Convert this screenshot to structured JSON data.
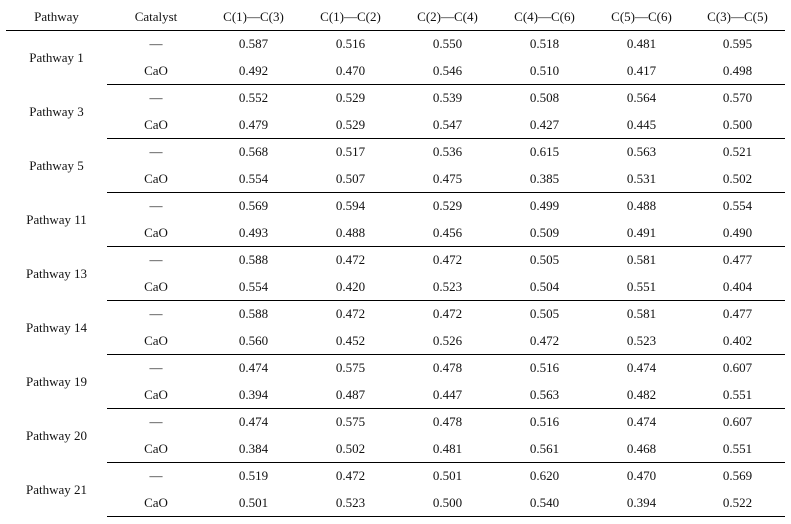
{
  "headers": [
    "Pathway",
    "Catalyst",
    "C(1)—C(3)",
    "C(1)—C(2)",
    "C(2)—C(4)",
    "C(4)—C(6)",
    "C(5)—C(6)",
    "C(3)—C(5)"
  ],
  "groups": [
    {
      "pathway": "Pathway 1",
      "rows": [
        {
          "catalyst": "—",
          "values": [
            "0.587",
            "0.516",
            "0.550",
            "0.518",
            "0.481",
            "0.595"
          ]
        },
        {
          "catalyst": "CaO",
          "values": [
            "0.492",
            "0.470",
            "0.546",
            "0.510",
            "0.417",
            "0.498"
          ]
        }
      ]
    },
    {
      "pathway": "Pathway 3",
      "rows": [
        {
          "catalyst": "—",
          "values": [
            "0.552",
            "0.529",
            "0.539",
            "0.508",
            "0.564",
            "0.570"
          ]
        },
        {
          "catalyst": "CaO",
          "values": [
            "0.479",
            "0.529",
            "0.547",
            "0.427",
            "0.445",
            "0.500"
          ]
        }
      ]
    },
    {
      "pathway": "Pathway 5",
      "rows": [
        {
          "catalyst": "—",
          "values": [
            "0.568",
            "0.517",
            "0.536",
            "0.615",
            "0.563",
            "0.521"
          ]
        },
        {
          "catalyst": "CaO",
          "values": [
            "0.554",
            "0.507",
            "0.475",
            "0.385",
            "0.531",
            "0.502"
          ]
        }
      ]
    },
    {
      "pathway": "Pathway 11",
      "rows": [
        {
          "catalyst": "—",
          "values": [
            "0.569",
            "0.594",
            "0.529",
            "0.499",
            "0.488",
            "0.554"
          ]
        },
        {
          "catalyst": "CaO",
          "values": [
            "0.493",
            "0.488",
            "0.456",
            "0.509",
            "0.491",
            "0.490"
          ]
        }
      ]
    },
    {
      "pathway": "Pathway 13",
      "rows": [
        {
          "catalyst": "—",
          "values": [
            "0.588",
            "0.472",
            "0.472",
            "0.505",
            "0.581",
            "0.477"
          ]
        },
        {
          "catalyst": "CaO",
          "values": [
            "0.554",
            "0.420",
            "0.523",
            "0.504",
            "0.551",
            "0.404"
          ]
        }
      ]
    },
    {
      "pathway": "Pathway 14",
      "rows": [
        {
          "catalyst": "—",
          "values": [
            "0.588",
            "0.472",
            "0.472",
            "0.505",
            "0.581",
            "0.477"
          ]
        },
        {
          "catalyst": "CaO",
          "values": [
            "0.560",
            "0.452",
            "0.526",
            "0.472",
            "0.523",
            "0.402"
          ]
        }
      ]
    },
    {
      "pathway": "Pathway 19",
      "rows": [
        {
          "catalyst": "—",
          "values": [
            "0.474",
            "0.575",
            "0.478",
            "0.516",
            "0.474",
            "0.607"
          ]
        },
        {
          "catalyst": "CaO",
          "values": [
            "0.394",
            "0.487",
            "0.447",
            "0.563",
            "0.482",
            "0.551"
          ]
        }
      ]
    },
    {
      "pathway": "Pathway 20",
      "rows": [
        {
          "catalyst": "—",
          "values": [
            "0.474",
            "0.575",
            "0.478",
            "0.516",
            "0.474",
            "0.607"
          ]
        },
        {
          "catalyst": "CaO",
          "values": [
            "0.384",
            "0.502",
            "0.481",
            "0.561",
            "0.468",
            "0.551"
          ]
        }
      ]
    },
    {
      "pathway": "Pathway 21",
      "rows": [
        {
          "catalyst": "—",
          "values": [
            "0.519",
            "0.472",
            "0.501",
            "0.620",
            "0.470",
            "0.569"
          ]
        },
        {
          "catalyst": "CaO",
          "values": [
            "0.501",
            "0.523",
            "0.500",
            "0.540",
            "0.394",
            "0.522"
          ]
        }
      ]
    }
  ]
}
